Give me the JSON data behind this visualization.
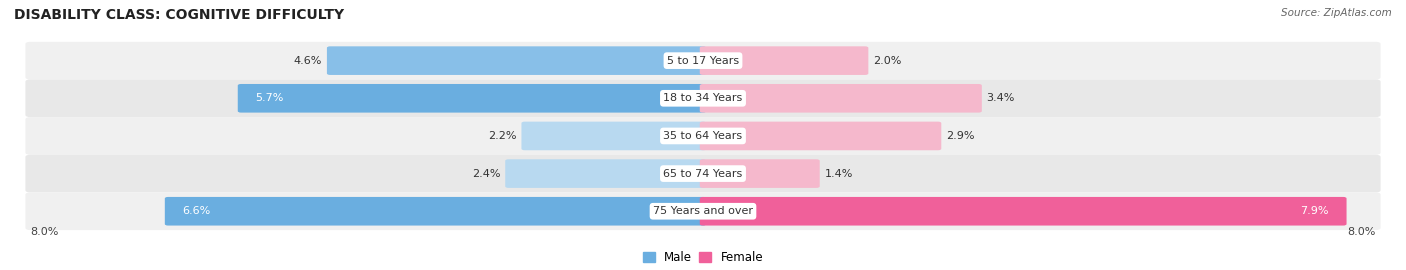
{
  "title": "DISABILITY CLASS: COGNITIVE DIFFICULTY",
  "source": "Source: ZipAtlas.com",
  "categories": [
    "5 to 17 Years",
    "18 to 34 Years",
    "35 to 64 Years",
    "65 to 74 Years",
    "75 Years and over"
  ],
  "male_values": [
    4.6,
    5.7,
    2.2,
    2.4,
    6.6
  ],
  "female_values": [
    2.0,
    3.4,
    2.9,
    1.4,
    7.9
  ],
  "max_val": 8.0,
  "male_colors": [
    "#88bfe8",
    "#6aaee0",
    "#b8d9f0",
    "#b8d9f0",
    "#6aaee0"
  ],
  "female_colors": [
    "#f5b8cc",
    "#f5b8cc",
    "#f5b8cc",
    "#f5b8cc",
    "#f0609a"
  ],
  "male_label_inside": [
    false,
    true,
    false,
    false,
    true
  ],
  "female_label_inside": [
    false,
    false,
    false,
    false,
    true
  ],
  "row_colors": [
    "#f0f0f0",
    "#e8e8e8",
    "#f0f0f0",
    "#e8e8e8",
    "#f0f0f0"
  ],
  "male_legend_color": "#6aaee0",
  "female_legend_color": "#f0609a",
  "title_fontsize": 10,
  "cat_label_fontsize": 8,
  "bar_label_fontsize": 8,
  "legend_fontsize": 8.5,
  "bottom_label": "8.0%"
}
